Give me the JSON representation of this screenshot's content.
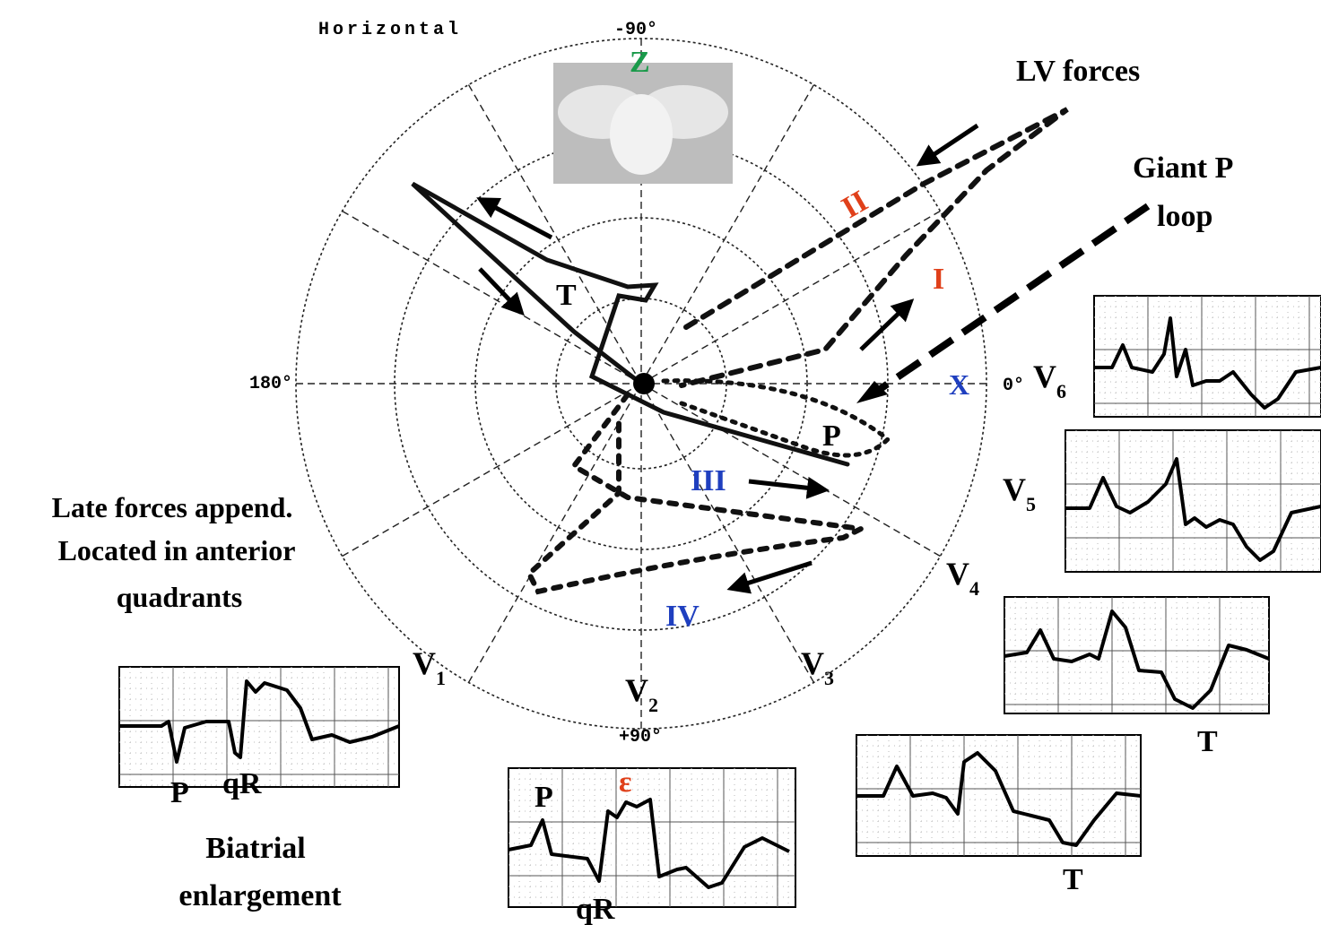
{
  "title": "Horizontal",
  "axis_labels": {
    "top": "-90°",
    "bottom": "+90°",
    "left": "180°",
    "right": "0°"
  },
  "axes": {
    "z": "Z",
    "x": "X"
  },
  "loop_labels": {
    "lv_forces": "LV forces",
    "giant_p": [
      "Giant P",
      "loop"
    ],
    "sectors": [
      "I",
      "II",
      "III",
      "IV"
    ],
    "t": "T",
    "p": "P"
  },
  "leads": [
    {
      "letter": "V",
      "sub": "1"
    },
    {
      "letter": "V",
      "sub": "2"
    },
    {
      "letter": "V",
      "sub": "3"
    },
    {
      "letter": "V",
      "sub": "4"
    },
    {
      "letter": "V",
      "sub": "5"
    },
    {
      "letter": "V",
      "sub": "6"
    }
  ],
  "notes": {
    "late_forces": [
      "Late forces append.",
      "Located in anterior",
      "quadrants"
    ],
    "biatrial": [
      "Biatrial",
      "enlargement"
    ]
  },
  "ecg_labels": {
    "v1": [
      "P",
      "qR"
    ],
    "v2": [
      "P",
      "ε",
      "qR"
    ],
    "v4": [
      "T"
    ],
    "v3": [
      "T"
    ]
  }
}
